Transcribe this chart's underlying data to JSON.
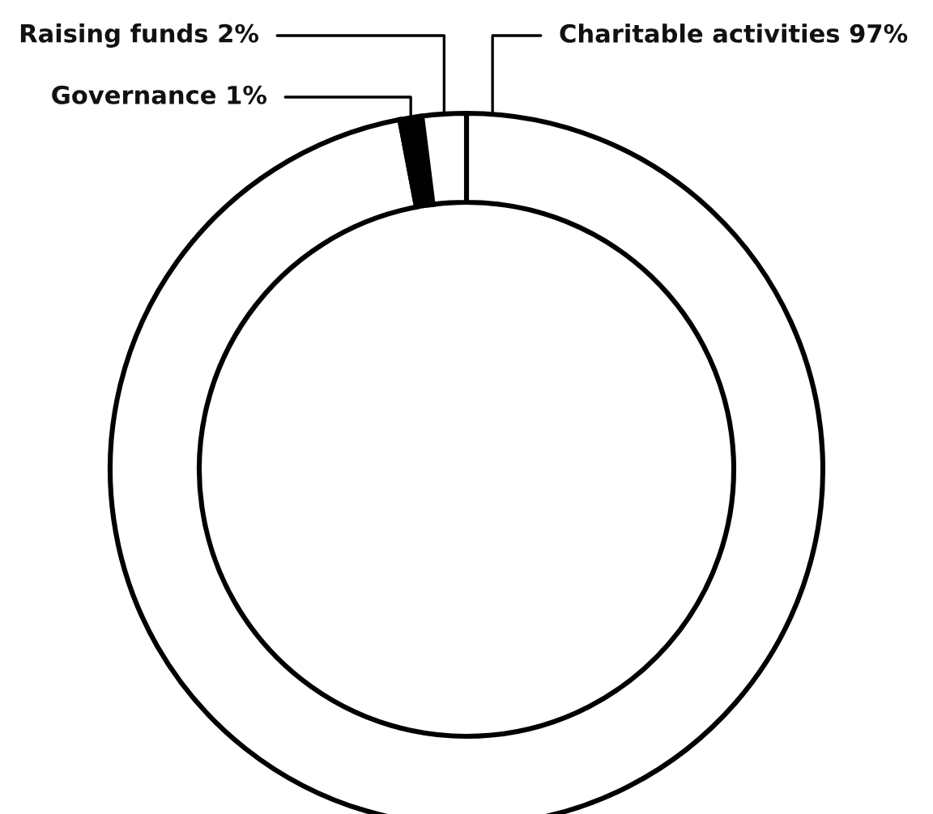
{
  "chart_data": {
    "type": "donut",
    "categories": [
      "Charitable activities",
      "Governance",
      "Raising funds"
    ],
    "values": [
      97,
      1,
      2
    ],
    "value_labels": [
      "97%",
      "1%",
      "2%"
    ],
    "colors": [
      "#ffffff",
      "#000000",
      "#ffffff"
    ],
    "legend": false
  }
}
